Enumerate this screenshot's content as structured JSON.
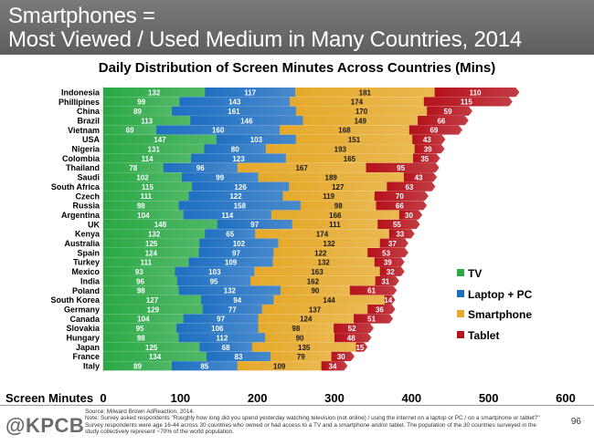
{
  "header": {
    "title_line1": "Smartphones =",
    "title_line2": "Most Viewed / Used Medium in Many Countries, 2014"
  },
  "footer": {
    "logo": "@KPCB",
    "source": "Source: Milward Brown AdReaction, 2014.",
    "note": "Note: Survey asked respondents \"Roughly how long did you spend yesterday   watching television (not online) / using the internet on a laptop or PC / on a smartphone or tablet?\" Survey respondents were age 16-44 across 30 countries who owned or had access to a TV and a smartphone and/or tablet. The population of the 30 countries surveyed in the study collectively represent ~70% of the world population.",
    "page_number": "96"
  },
  "chart_data": {
    "type": "bar",
    "orientation": "horizontal",
    "stacked": true,
    "title": "Daily Distribution of Screen Minutes Across Countries (Mins)",
    "xlabel": "Screen Minutes",
    "xlim": [
      0,
      600
    ],
    "xticks": [
      "0",
      "100",
      "200",
      "300",
      "400",
      "500",
      "600"
    ],
    "categories": [
      "Indonesia",
      "Phillipines",
      "China",
      "Brazil",
      "Vietnam",
      "USA",
      "Nigeria",
      "Colombia",
      "Thailand",
      "Saudi",
      "South Africa",
      "Czech",
      "Russia",
      "Argentina",
      "UK",
      "Kenya",
      "Australia",
      "Spain",
      "Turkey",
      "Mexico",
      "India",
      "Poland",
      "South Korea",
      "Germany",
      "Canada",
      "Slovakia",
      "Hungary",
      "Japan",
      "France",
      "Italy"
    ],
    "series": [
      {
        "name": "TV",
        "color": "#2aa845",
        "values": [
          132,
          99,
          89,
          113,
          69,
          147,
          131,
          114,
          78,
          102,
          115,
          111,
          98,
          104,
          148,
          132,
          125,
          124,
          111,
          93,
          96,
          98,
          127,
          129,
          104,
          95,
          98,
          125,
          134,
          89
        ]
      },
      {
        "name": "Laptop + PC",
        "color": "#1f6fc1",
        "values": [
          117,
          143,
          161,
          146,
          160,
          103,
          80,
          123,
          96,
          99,
          126,
          122,
          158,
          114,
          97,
          65,
          102,
          97,
          109,
          103,
          95,
          132,
          94,
          77,
          97,
          106,
          112,
          68,
          83,
          85
        ]
      },
      {
        "name": "Smartphone",
        "color": "#e5a92b",
        "values": [
          181,
          174,
          170,
          149,
          168,
          151,
          193,
          165,
          167,
          189,
          127,
          119,
          98,
          166,
          111,
          174,
          132,
          122,
          132,
          163,
          162,
          90,
          144,
          137,
          124,
          98,
          90,
          135,
          79,
          109
        ]
      },
      {
        "name": "Tablet",
        "color": "#b5121b",
        "values": [
          110,
          115,
          59,
          66,
          69,
          43,
          39,
          35,
          95,
          43,
          63,
          70,
          66,
          30,
          55,
          33,
          37,
          53,
          39,
          32,
          31,
          61,
          14,
          36,
          51,
          52,
          48,
          15,
          30,
          34
        ]
      }
    ],
    "legend_placement": "right",
    "grid": false
  }
}
